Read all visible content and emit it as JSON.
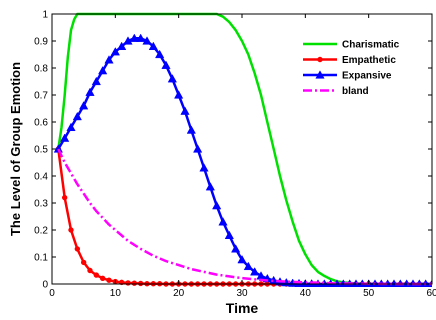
{
  "chart_data": {
    "type": "line",
    "title": "",
    "xlabel": "Time",
    "ylabel": "The Level of Group Emotion",
    "xlim": [
      0,
      60
    ],
    "ylim": [
      0,
      1
    ],
    "x_ticks": [
      0,
      10,
      20,
      30,
      40,
      50,
      60
    ],
    "y_ticks": [
      0,
      0.1,
      0.2,
      0.3,
      0.4,
      0.5,
      0.6,
      0.7,
      0.8,
      0.9,
      1
    ],
    "x_tick_labels": [
      "0",
      "10",
      "20",
      "30",
      "40",
      "50",
      "60"
    ],
    "y_tick_labels": [
      "0",
      "0.1",
      "0.2",
      "0.3",
      "0.4",
      "0.5",
      "0.6",
      "0.7",
      "0.8",
      "0.9",
      "1"
    ],
    "grid": false,
    "legend_position": "top-right",
    "series": [
      {
        "name": "Charismatic",
        "color": "#00e000",
        "dash": "solid",
        "marker": "none",
        "x": [
          1,
          1.5,
          2,
          2.5,
          3,
          3.5,
          4,
          5,
          10,
          20,
          26,
          27,
          28,
          29,
          30,
          31,
          32,
          33,
          34,
          35,
          36,
          37,
          38,
          39,
          40,
          41,
          42,
          43,
          44,
          45,
          46,
          47,
          48,
          50,
          55,
          60
        ],
        "y": [
          0.5,
          0.58,
          0.7,
          0.84,
          0.94,
          0.98,
          1,
          1,
          1,
          1,
          1,
          0.99,
          0.97,
          0.94,
          0.9,
          0.85,
          0.78,
          0.7,
          0.6,
          0.5,
          0.4,
          0.31,
          0.23,
          0.16,
          0.11,
          0.07,
          0.045,
          0.03,
          0.018,
          0.01,
          0.006,
          0.004,
          0.002,
          0.001,
          0,
          0
        ]
      },
      {
        "name": "Empathetic",
        "color": "#ff0000",
        "dash": "solid",
        "marker": "dot",
        "x": [
          1,
          2,
          3,
          4,
          5,
          6,
          7,
          8,
          9,
          10,
          11,
          12,
          13,
          14,
          15,
          16,
          17,
          18,
          19,
          20,
          21,
          22,
          23,
          24,
          25,
          26,
          27,
          28,
          29,
          30,
          31,
          32,
          33,
          34,
          35,
          36,
          37,
          38,
          39,
          40,
          41,
          42,
          43,
          44,
          45,
          46,
          47,
          48,
          49,
          50,
          51,
          52,
          53,
          54,
          55,
          56,
          57,
          58,
          59,
          60
        ],
        "y": [
          0.5,
          0.32,
          0.2,
          0.13,
          0.08,
          0.05,
          0.033,
          0.021,
          0.014,
          0.009,
          0.006,
          0.004,
          0.003,
          0.002,
          0.001,
          0.001,
          0.001,
          0,
          0,
          0,
          0,
          0,
          0,
          0,
          0,
          0,
          0,
          0,
          0,
          0,
          0,
          0,
          0,
          0,
          0,
          0,
          0,
          0,
          0,
          0,
          0,
          0,
          0,
          0,
          0,
          0,
          0,
          0,
          0,
          0,
          0,
          0,
          0,
          0,
          0,
          0,
          0,
          0,
          0,
          0
        ]
      },
      {
        "name": "Expansive",
        "color": "#0000ff",
        "dash": "solid",
        "marker": "triangle",
        "x": [
          1,
          2,
          3,
          4,
          5,
          6,
          7,
          8,
          9,
          10,
          11,
          12,
          13,
          14,
          15,
          16,
          17,
          18,
          19,
          20,
          21,
          22,
          23,
          24,
          25,
          26,
          27,
          28,
          29,
          30,
          31,
          32,
          33,
          34,
          35,
          36,
          37,
          38,
          39,
          40,
          41,
          42,
          43,
          44,
          45,
          46,
          47,
          48,
          49,
          50,
          51,
          52,
          53,
          54,
          55,
          56,
          57,
          58,
          59,
          60
        ],
        "y": [
          0.5,
          0.54,
          0.58,
          0.62,
          0.66,
          0.71,
          0.75,
          0.79,
          0.83,
          0.86,
          0.88,
          0.9,
          0.91,
          0.91,
          0.9,
          0.88,
          0.85,
          0.81,
          0.76,
          0.7,
          0.64,
          0.57,
          0.5,
          0.43,
          0.36,
          0.29,
          0.23,
          0.18,
          0.13,
          0.09,
          0.065,
          0.045,
          0.03,
          0.02,
          0.013,
          0.008,
          0.005,
          0.003,
          0.002,
          0.001,
          0.001,
          0,
          0,
          0,
          0,
          0,
          0,
          0,
          0,
          0,
          0,
          0,
          0,
          0,
          0,
          0,
          0,
          0,
          0,
          0
        ]
      },
      {
        "name": "bland",
        "color": "#ff00ff",
        "dash": "dash-dot",
        "marker": "none",
        "x": [
          1,
          2,
          3,
          4,
          5,
          6,
          7,
          8,
          9,
          10,
          12,
          14,
          16,
          18,
          20,
          22,
          24,
          26,
          28,
          30,
          32,
          34,
          36,
          38,
          40,
          42,
          44,
          46,
          48,
          50,
          55,
          60
        ],
        "y": [
          0.5,
          0.45,
          0.41,
          0.37,
          0.335,
          0.3,
          0.27,
          0.245,
          0.22,
          0.2,
          0.16,
          0.13,
          0.105,
          0.085,
          0.07,
          0.055,
          0.045,
          0.035,
          0.028,
          0.022,
          0.017,
          0.013,
          0.01,
          0.008,
          0.006,
          0.005,
          0.003,
          0.002,
          0.002,
          0.001,
          0,
          0
        ]
      }
    ]
  }
}
